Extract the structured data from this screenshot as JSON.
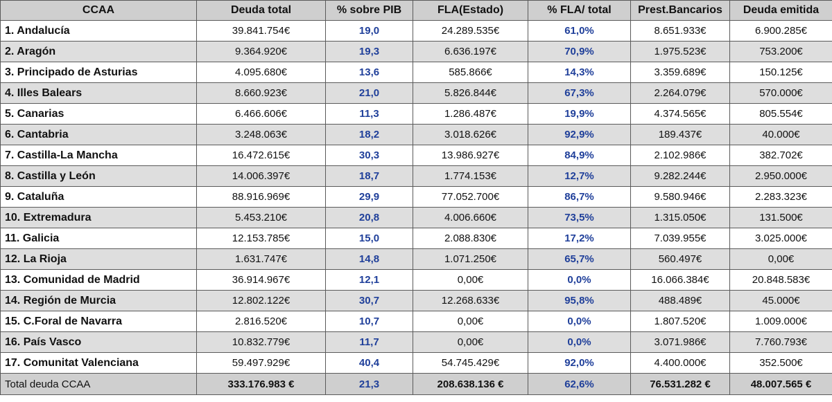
{
  "headers": [
    "CCAA",
    "Deuda total",
    "% sobre PIB",
    "FLA(Estado)",
    "% FLA/ total",
    "Prest.Bancarios",
    "Deuda emitida"
  ],
  "rows": [
    [
      "1. Andalucía",
      "39.841.754€",
      "19,0",
      "24.289.535€",
      "61,0%",
      "8.651.933€",
      "6.900.285€"
    ],
    [
      "2. Aragón",
      "9.364.920€",
      "19,3",
      "6.636.197€",
      "70,9%",
      "1.975.523€",
      "753.200€"
    ],
    [
      "3. Principado de Asturias",
      "4.095.680€",
      "13,6",
      "585.866€",
      "14,3%",
      "3.359.689€",
      "150.125€"
    ],
    [
      "4. Illes Balears",
      "8.660.923€",
      "21,0",
      "5.826.844€",
      "67,3%",
      "2.264.079€",
      "570.000€"
    ],
    [
      "5. Canarias",
      "6.466.606€",
      "11,3",
      "1.286.487€",
      "19,9%",
      "4.374.565€",
      "805.554€"
    ],
    [
      "6. Cantabria",
      "3.248.063€",
      "18,2",
      "3.018.626€",
      "92,9%",
      "189.437€",
      "40.000€"
    ],
    [
      "7. Castilla-La Mancha",
      "16.472.615€",
      "30,3",
      "13.986.927€",
      "84,9%",
      "2.102.986€",
      "382.702€"
    ],
    [
      "8. Castilla y León",
      "14.006.397€",
      "18,7",
      "1.774.153€",
      "12,7%",
      "9.282.244€",
      "2.950.000€"
    ],
    [
      "9. Cataluña",
      "88.916.969€",
      "29,9",
      "77.052.700€",
      "86,7%",
      "9.580.946€",
      "2.283.323€"
    ],
    [
      "10. Extremadura",
      "5.453.210€",
      "20,8",
      "4.006.660€",
      "73,5%",
      "1.315.050€",
      "131.500€"
    ],
    [
      "11. Galicia",
      "12.153.785€",
      "15,0",
      "2.088.830€",
      "17,2%",
      "7.039.955€",
      "3.025.000€"
    ],
    [
      "12. La Rioja",
      "1.631.747€",
      "14,8",
      "1.071.250€",
      "65,7%",
      "560.497€",
      "0,00€"
    ],
    [
      "13. Comunidad de Madrid",
      "36.914.967€",
      "12,1",
      "0,00€",
      "0,0%",
      "16.066.384€",
      "20.848.583€"
    ],
    [
      "14. Región de Murcia",
      "12.802.122€",
      "30,7",
      "12.268.633€",
      "95,8%",
      "488.489€",
      "45.000€"
    ],
    [
      "15. C.Foral de Navarra",
      "2.816.520€",
      "10,7",
      "0,00€",
      "0,0%",
      "1.807.520€",
      "1.009.000€"
    ],
    [
      "16. País Vasco",
      "10.832.779€",
      "11,7",
      "0,00€",
      "0,0%",
      "3.071.986€",
      "7.760.793€"
    ],
    [
      "17. Comunitat Valenciana",
      "59.497.929€",
      "40,4",
      "54.745.429€",
      "92,0%",
      "4.400.000€",
      "352.500€"
    ]
  ],
  "total": [
    "Total deuda CCAA",
    "333.176.983 €",
    "21,3",
    "208.638.136 €",
    "62,6%",
    "76.531.282 €",
    "48.007.565 €"
  ],
  "colors": {
    "header_bg": "#cfcfcf",
    "shaded_row_bg": "#dedede",
    "percent_text": "#1f3f9a"
  }
}
